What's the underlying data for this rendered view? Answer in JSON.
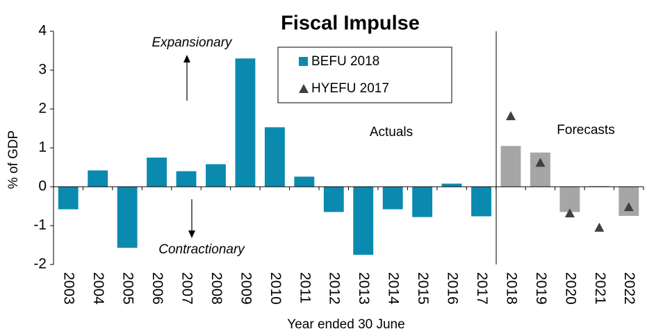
{
  "chart_data": {
    "type": "bar",
    "title": "Fiscal Impulse",
    "y_label": "% of GDP",
    "x_label": "Year ended 30 June",
    "categories": [
      "2003",
      "2004",
      "2005",
      "2006",
      "2007",
      "2008",
      "2009",
      "2010",
      "2011",
      "2012",
      "2013",
      "2014",
      "2015",
      "2016",
      "2017",
      "2018",
      "2019",
      "2020",
      "2021",
      "2022"
    ],
    "series": [
      {
        "name": "BEFU 2018",
        "color": "#0b8ab0",
        "colors": [
          "#0b8ab0",
          "#0b8ab0",
          "#0b8ab0",
          "#0b8ab0",
          "#0b8ab0",
          "#0b8ab0",
          "#0b8ab0",
          "#0b8ab0",
          "#0b8ab0",
          "#0b8ab0",
          "#0b8ab0",
          "#0b8ab0",
          "#0b8ab0",
          "#0b8ab0",
          "#0b8ab0",
          "#a6a6a6",
          "#a6a6a6",
          "#a6a6a6",
          "#a6a6a6",
          "#a6a6a6"
        ],
        "values": [
          -0.58,
          0.42,
          -1.57,
          0.75,
          0.4,
          0.58,
          3.3,
          1.53,
          0.26,
          -0.65,
          -1.75,
          -0.58,
          -0.78,
          0.08,
          -0.76,
          1.05,
          0.88,
          -0.65,
          0.02,
          -0.75
        ]
      },
      {
        "name": "HYEFU 2017",
        "color": "#404040",
        "marker": "triangle",
        "values": [
          null,
          null,
          null,
          null,
          null,
          null,
          null,
          null,
          null,
          null,
          null,
          null,
          null,
          null,
          null,
          1.82,
          0.62,
          -0.68,
          -1.05,
          -0.52
        ]
      }
    ],
    "annotations": [
      "Expansionary",
      "Contractionary",
      "Actuals",
      "Forecasts"
    ],
    "ylim": [
      -2,
      4
    ],
    "yticks": [
      -2,
      -1,
      0,
      1,
      2,
      3,
      4
    ],
    "grid": false
  }
}
